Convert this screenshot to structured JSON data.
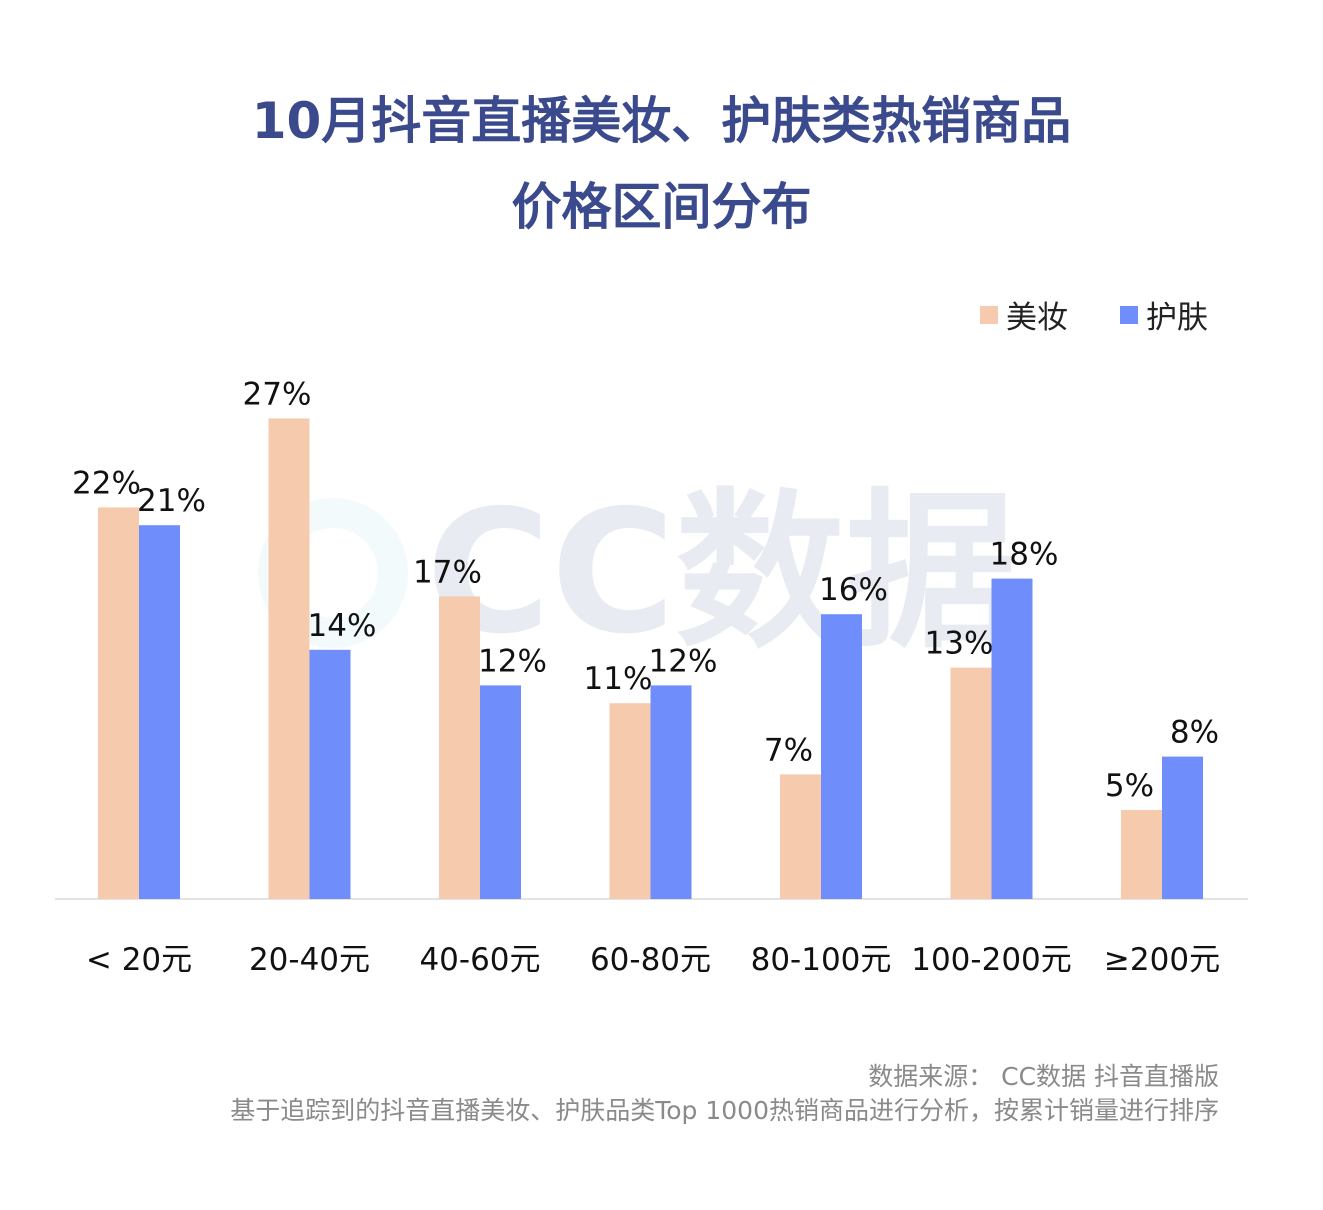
{
  "title_line1": "10月抖音直播美妆、护肤类热销商品",
  "title_line2": "价格区间分布",
  "watermark": "CC数据",
  "legend": [
    {
      "label": "美妆",
      "color": "#f6cbad"
    },
    {
      "label": "护肤",
      "color": "#6f8dfb"
    }
  ],
  "source_line1": "数据来源： CC数据 抖音直播版",
  "source_line2": "基于追踪到的抖音直播美妆、护肤品类Top 1000热销商品进行分析，按累计销量进行排序",
  "chart_data": {
    "type": "bar",
    "categories": [
      "< 20元",
      "20-40元",
      "40-60元",
      "60-80元",
      "80-100元",
      "100-200元",
      "≥200元"
    ],
    "series": [
      {
        "name": "美妆",
        "color": "#f6cbad",
        "values": [
          22,
          27,
          17,
          11,
          7,
          13,
          5
        ],
        "labels": [
          "22%",
          "27%",
          "17%",
          "11%",
          "7%",
          "13%",
          "5%"
        ]
      },
      {
        "name": "护肤",
        "color": "#6f8dfb",
        "values": [
          21,
          14,
          12,
          12,
          16,
          18,
          8
        ],
        "labels": [
          "21%",
          "14%",
          "12%",
          "12%",
          "16%",
          "18%",
          "8%"
        ]
      }
    ],
    "ylim": [
      0,
      30
    ],
    "legend_position": "top-right",
    "grid": false
  }
}
